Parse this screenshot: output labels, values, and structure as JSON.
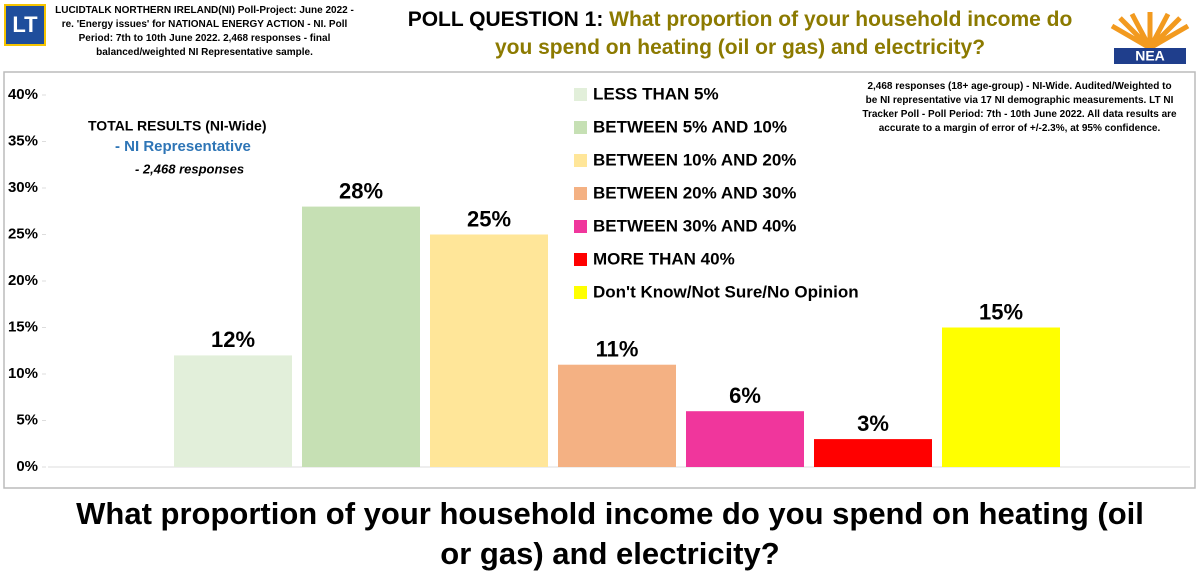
{
  "chart_data": {
    "type": "bar",
    "logo_left": "LT",
    "logo_right": "NEA",
    "source_note": "LUCIDTALK NORTHERN IRELAND(NI) Poll-Project: June 2022 - re. 'Energy issues' for NATIONAL ENERGY ACTION - NI. Poll Period: 7th to 10th June 2022. 2,468 responses - final balanced/weighted NI Representative sample.",
    "title_prefix": "POLL QUESTION 1:",
    "title": "What proportion of your household income do you spend on heating (oil or gas) and electricity?",
    "annotations": [
      "TOTAL RESULTS (NI-Wide)",
      "- NI Representative",
      "- 2,468 responses"
    ],
    "method_note": "2,468 responses (18+ age-group) - NI-Wide. Audited/Weighted to be NI representative via 17 NI demographic measurements. LT NI Tracker Poll - Poll Period: 7th - 10th June 2022. All data results are accurate to a margin of error of +/-2.3%, at 95% confidence.",
    "x_label": "What proportion of your household income do you spend on heating (oil or gas) and electricity?",
    "categories": [
      "LESS THAN 5%",
      "BETWEEN 5% AND 10%",
      "BETWEEN 10% AND 20%",
      "BETWEEN 20% AND 30%",
      "BETWEEN 30% AND 40%",
      "MORE THAN 40%",
      "Don't Know/Not Sure/No Opinion"
    ],
    "values": [
      12,
      28,
      25,
      11,
      6,
      3,
      15
    ],
    "value_labels": [
      "12%",
      "28%",
      "25%",
      "11%",
      "6%",
      "3%",
      "15%"
    ],
    "colors": [
      "#e2efda",
      "#c6e0b4",
      "#ffe699",
      "#f4b183",
      "#f0369c",
      "#ff0000",
      "#ffff00"
    ],
    "ylim": [
      0,
      40
    ],
    "yticks": [
      {
        "value": 0,
        "label": "0%"
      },
      {
        "value": 5,
        "label": "5%"
      },
      {
        "value": 10,
        "label": "10%"
      },
      {
        "value": 15,
        "label": "15%"
      },
      {
        "value": 20,
        "label": "20%"
      },
      {
        "value": 25,
        "label": "25%"
      },
      {
        "value": 30,
        "label": "30%"
      },
      {
        "value": 35,
        "label": "35%"
      },
      {
        "value": 40,
        "label": "40%"
      }
    ],
    "legend": "top-center"
  }
}
